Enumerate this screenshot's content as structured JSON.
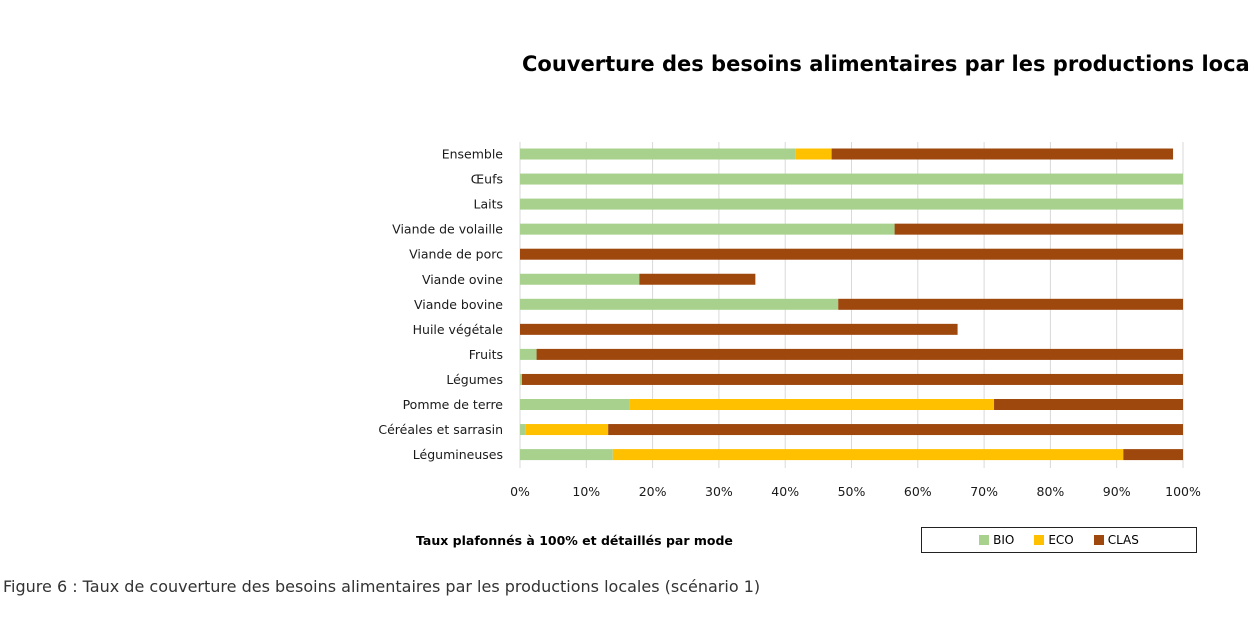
{
  "chart_data": {
    "type": "bar",
    "orientation": "horizontal",
    "stacked": true,
    "title": "Couverture  des besoins alimentaires  par les productions  locales",
    "categories": [
      "Ensemble",
      "Œufs",
      "Laits",
      "Viande de volaille",
      "Viande de porc",
      "Viande ovine",
      "Viande bovine",
      "Huile végétale",
      "Fruits",
      "Légumes",
      "Pomme de terre",
      "Céréales et sarrasin",
      "Légumineuses"
    ],
    "series": [
      {
        "name": "BIO",
        "color": "#a9d18e",
        "values": [
          41.5,
          100,
          100,
          56.5,
          0,
          18,
          48,
          0,
          2.5,
          0.3,
          16.5,
          0.8,
          14
        ]
      },
      {
        "name": "ECO",
        "color": "#ffc000",
        "values": [
          5.5,
          0,
          0,
          0,
          0,
          0,
          0,
          0,
          0,
          0,
          55,
          12.5,
          77
        ]
      },
      {
        "name": "CLAS",
        "color": "#9e480e",
        "values": [
          51.5,
          0,
          0,
          43.5,
          100,
          17.5,
          52,
          66,
          97.5,
          99.7,
          28.5,
          86.7,
          9
        ]
      }
    ],
    "xlim": [
      0,
      100
    ],
    "x_ticks": [
      "0%",
      "10%",
      "20%",
      "30%",
      "40%",
      "50%",
      "60%",
      "70%",
      "80%",
      "90%",
      "100%"
    ],
    "grid": true,
    "legend": {
      "position": "bottom-right",
      "entries": [
        "BIO",
        "ECO",
        "CLAS"
      ]
    },
    "note": "Taux plafonnés à 100% et détaillés par mode"
  },
  "caption": "Figure 6 : Taux de couverture des besoins alimentaires par les productions locales (scénario 1)"
}
